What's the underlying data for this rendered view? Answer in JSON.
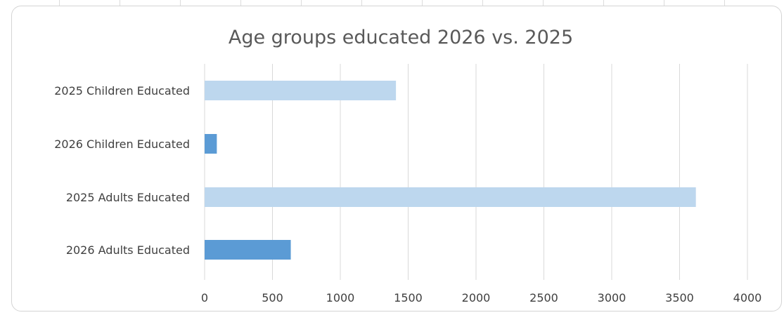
{
  "chart_data": {
    "type": "bar",
    "orientation": "horizontal",
    "title": "Age groups educated 2026 vs. 2025",
    "categories": [
      "2025 Children Educated",
      "2026 Children Educated",
      "2025 Adults Educated",
      "2026 Adults Educated"
    ],
    "values": [
      1410,
      90,
      3620,
      635
    ],
    "bar_colors": [
      "#bdd7ee",
      "#5b9bd5",
      "#bdd7ee",
      "#5b9bd5"
    ],
    "xticks": [
      0,
      500,
      1000,
      1500,
      2000,
      2500,
      3000,
      3500,
      4000
    ],
    "xlim": [
      0,
      4000
    ],
    "xlabel": "",
    "ylabel": "",
    "grid": true,
    "legend": "none"
  }
}
